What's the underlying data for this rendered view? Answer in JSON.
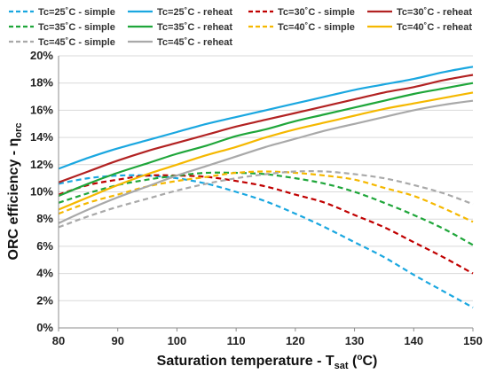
{
  "chart_data": {
    "type": "line",
    "xlabel": "Saturation temperature - T",
    "xlabel_sub": "sat",
    "xlabel_unit_pre": " (",
    "xlabel_unit_sup": "o",
    "xlabel_unit_post": "C)",
    "ylabel": "ORC efficiency - η",
    "ylabel_sub": "orc",
    "xlim": [
      80,
      150
    ],
    "ylim": [
      0,
      20
    ],
    "x_ticks": [
      80,
      90,
      100,
      110,
      120,
      130,
      140,
      150
    ],
    "y_ticks": [
      0,
      2,
      4,
      6,
      8,
      10,
      12,
      14,
      16,
      18,
      20
    ],
    "y_tick_labels": [
      "0%",
      "2%",
      "4%",
      "6%",
      "8%",
      "10%",
      "12%",
      "14%",
      "16%",
      "18%",
      "20%"
    ],
    "x_tick_labels": [
      "80",
      "90",
      "100",
      "110",
      "120",
      "130",
      "140",
      "150"
    ],
    "grid": "horizontal",
    "legend_position": "top",
    "x": [
      80,
      85,
      90,
      95,
      100,
      105,
      110,
      115,
      120,
      125,
      130,
      135,
      140,
      145,
      150
    ],
    "series": [
      {
        "name": "Tc=25˚C - simple",
        "color": "#1AA7E0",
        "dash": true,
        "values": [
          10.6,
          11.0,
          11.2,
          11.2,
          11.0,
          10.6,
          10.0,
          9.3,
          8.4,
          7.4,
          6.3,
          5.2,
          3.9,
          2.7,
          1.5
        ]
      },
      {
        "name": "Tc=25˚C - reheat",
        "color": "#1AA7E0",
        "dash": false,
        "values": [
          11.7,
          12.5,
          13.2,
          13.8,
          14.4,
          15.0,
          15.5,
          16.0,
          16.5,
          17.0,
          17.5,
          17.9,
          18.3,
          18.8,
          19.2
        ]
      },
      {
        "name": "Tc=30˚C - simple",
        "color": "#C00000",
        "dash": true,
        "values": [
          9.8,
          10.5,
          10.9,
          11.2,
          11.2,
          11.1,
          10.8,
          10.4,
          9.8,
          9.2,
          8.3,
          7.4,
          6.3,
          5.2,
          4.0
        ]
      },
      {
        "name": "Tc=30˚C - reheat",
        "color": "#B22222",
        "dash": false,
        "values": [
          10.7,
          11.5,
          12.3,
          13.0,
          13.6,
          14.2,
          14.8,
          15.3,
          15.8,
          16.3,
          16.8,
          17.3,
          17.7,
          18.2,
          18.6
        ]
      },
      {
        "name": "Tc=35˚C - simple",
        "color": "#1FA63A",
        "dash": true,
        "values": [
          9.2,
          9.9,
          10.5,
          10.9,
          11.2,
          11.4,
          11.4,
          11.3,
          11.0,
          10.6,
          10.0,
          9.2,
          8.3,
          7.3,
          6.1
        ]
      },
      {
        "name": "Tc=35˚C - reheat",
        "color": "#1FA63A",
        "dash": false,
        "values": [
          9.7,
          10.6,
          11.4,
          12.1,
          12.8,
          13.4,
          14.1,
          14.6,
          15.2,
          15.7,
          16.2,
          16.7,
          17.2,
          17.6,
          18.0
        ]
      },
      {
        "name": "Tc=40˚C - simple",
        "color": "#F5B800",
        "dash": true,
        "values": [
          8.4,
          9.2,
          9.8,
          10.4,
          10.8,
          11.1,
          11.4,
          11.5,
          11.4,
          11.2,
          10.9,
          10.3,
          9.7,
          8.8,
          7.8
        ]
      },
      {
        "name": "Tc=40˚C - reheat",
        "color": "#F5B800",
        "dash": false,
        "values": [
          8.7,
          9.6,
          10.5,
          11.3,
          12.0,
          12.7,
          13.3,
          14.0,
          14.6,
          15.1,
          15.6,
          16.1,
          16.5,
          16.9,
          17.3
        ]
      },
      {
        "name": "Tc=45˚C - simple",
        "color": "#A9A9A9",
        "dash": true,
        "values": [
          7.4,
          8.2,
          8.9,
          9.5,
          10.1,
          10.6,
          11.0,
          11.3,
          11.5,
          11.5,
          11.3,
          11.0,
          10.5,
          9.9,
          9.1
        ]
      },
      {
        "name": "Tc=45˚C - reheat",
        "color": "#A9A9A9",
        "dash": false,
        "values": [
          7.7,
          8.7,
          9.6,
          10.4,
          11.2,
          11.9,
          12.6,
          13.3,
          13.9,
          14.5,
          15.0,
          15.5,
          16.0,
          16.4,
          16.7
        ]
      }
    ]
  }
}
